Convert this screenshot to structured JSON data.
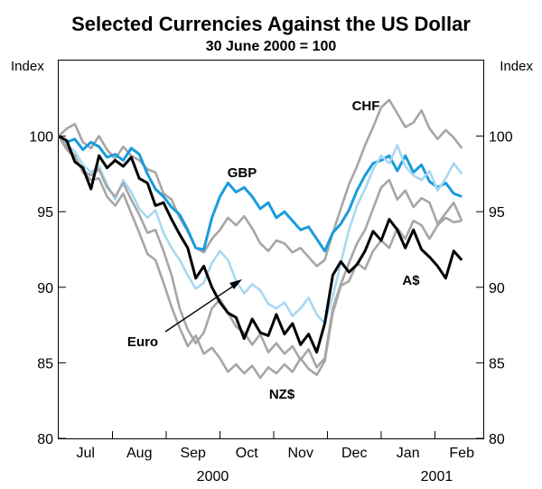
{
  "chart_data": {
    "type": "line",
    "title": "Selected Currencies Against the US Dollar",
    "subtitle": "30 June 2000 = 100",
    "ylabel_left": "Index",
    "ylabel_right": "Index",
    "ylim": [
      80,
      105
    ],
    "yticks": [
      80,
      85,
      90,
      95,
      100
    ],
    "xlim": [
      0,
      7.9
    ],
    "x_tick_labels": [
      {
        "label": "Jul",
        "x": 0.5
      },
      {
        "label": "Aug",
        "x": 1.5
      },
      {
        "label": "Sep",
        "x": 2.5
      },
      {
        "label": "Oct",
        "x": 3.5
      },
      {
        "label": "Nov",
        "x": 4.5
      },
      {
        "label": "Dec",
        "x": 5.5
      },
      {
        "label": "Jan",
        "x": 6.5
      },
      {
        "label": "Feb",
        "x": 7.5
      }
    ],
    "month_boundaries": [
      1,
      2,
      3,
      4,
      5,
      6,
      7
    ],
    "years": [
      {
        "label": "2000",
        "x": 3.0
      },
      {
        "label": "2001",
        "x": 7.0
      }
    ],
    "x_unit": "months since 30 June 2000 (daily data, approximated)",
    "series": [
      {
        "name": "CHF",
        "color": "#a6a6a6",
        "x": [
          0,
          0.15,
          0.3,
          0.45,
          0.6,
          0.75,
          0.9,
          1.05,
          1.2,
          1.35,
          1.5,
          1.65,
          1.8,
          1.95,
          2.1,
          2.25,
          2.4,
          2.55,
          2.7,
          2.85,
          3.0,
          3.15,
          3.3,
          3.45,
          3.6,
          3.75,
          3.9,
          4.05,
          4.2,
          4.35,
          4.5,
          4.65,
          4.8,
          4.95,
          5.1,
          5.25,
          5.4,
          5.55,
          5.7,
          5.85,
          6.0,
          6.15,
          6.3,
          6.45,
          6.6,
          6.75,
          6.9,
          7.05,
          7.2,
          7.35,
          7.5
        ],
        "values": [
          100,
          100.5,
          100.8,
          99.6,
          99.2,
          100,
          99.1,
          98.5,
          99.3,
          98.7,
          98.4,
          97.8,
          97.6,
          96.2,
          95.8,
          94.6,
          93.7,
          92.6,
          92.3,
          93.2,
          93.8,
          94.6,
          94.1,
          94.7,
          93.9,
          92.9,
          92.4,
          93.1,
          92.9,
          92.3,
          92.6,
          92.0,
          91.4,
          91.8,
          93.6,
          95.2,
          96.8,
          98.0,
          99.4,
          100.6,
          101.9,
          102.4,
          101.5,
          100.6,
          100.9,
          101.7,
          100.5,
          99.8,
          100.4,
          99.9,
          99.2
        ]
      },
      {
        "name": "GBP",
        "color": "#1a9bdc",
        "x": [
          0,
          0.15,
          0.3,
          0.45,
          0.6,
          0.75,
          0.9,
          1.05,
          1.2,
          1.35,
          1.5,
          1.65,
          1.8,
          1.95,
          2.1,
          2.25,
          2.4,
          2.55,
          2.7,
          2.85,
          3.0,
          3.15,
          3.3,
          3.45,
          3.6,
          3.75,
          3.9,
          4.05,
          4.2,
          4.35,
          4.5,
          4.65,
          4.8,
          4.95,
          5.1,
          5.25,
          5.4,
          5.55,
          5.7,
          5.85,
          6.0,
          6.15,
          6.3,
          6.45,
          6.6,
          6.75,
          6.9,
          7.05,
          7.2,
          7.35,
          7.5
        ],
        "values": [
          100,
          99.6,
          99.8,
          99.1,
          99.6,
          99.3,
          98.6,
          98.8,
          98.4,
          99.2,
          98.8,
          97.5,
          96.5,
          96.0,
          95.3,
          94.8,
          93.8,
          92.6,
          92.5,
          94.6,
          96.0,
          96.9,
          96.3,
          96.6,
          96.0,
          95.2,
          95.6,
          94.6,
          95.0,
          94.4,
          93.8,
          94.0,
          93.2,
          92.4,
          93.6,
          94.2,
          95.1,
          96.4,
          97.4,
          98.2,
          98.4,
          98.7,
          97.7,
          98.7,
          97.6,
          98.1,
          97.0,
          96.6,
          96.9,
          96.2,
          96.0
        ]
      },
      {
        "name": "Light blue",
        "color": "#a8d8f2",
        "x": [
          0,
          0.15,
          0.3,
          0.45,
          0.6,
          0.75,
          0.9,
          1.05,
          1.2,
          1.35,
          1.5,
          1.65,
          1.8,
          1.95,
          2.1,
          2.25,
          2.4,
          2.55,
          2.7,
          2.85,
          3.0,
          3.15,
          3.3,
          3.45,
          3.6,
          3.75,
          3.9,
          4.05,
          4.2,
          4.35,
          4.5,
          4.65,
          4.8,
          4.95,
          5.1,
          5.25,
          5.4,
          5.55,
          5.7,
          5.85,
          6.0,
          6.15,
          6.3,
          6.45,
          6.6,
          6.75,
          6.9,
          7.05,
          7.2,
          7.35,
          7.5
        ],
        "values": [
          100,
          99.4,
          99.0,
          98.1,
          97.6,
          98.0,
          96.8,
          95.8,
          97.1,
          96.3,
          95.2,
          94.6,
          95.1,
          93.6,
          92.6,
          91.8,
          90.8,
          89.9,
          90.3,
          91.6,
          92.4,
          91.8,
          90.4,
          89.6,
          90.2,
          89.8,
          88.9,
          88.6,
          89.0,
          88.1,
          88.6,
          89.3,
          88.2,
          87.6,
          89.4,
          91.6,
          93.8,
          95.4,
          96.5,
          97.8,
          98.7,
          98.2,
          99.4,
          98.0,
          97.4,
          97.1,
          97.7,
          96.4,
          97.2,
          98.2,
          97.5
        ]
      },
      {
        "name": "Euro",
        "color": "#a6a6a6",
        "x": [
          0,
          0.15,
          0.3,
          0.45,
          0.6,
          0.75,
          0.9,
          1.05,
          1.2,
          1.35,
          1.5,
          1.65,
          1.8,
          1.95,
          2.1,
          2.25,
          2.4,
          2.55,
          2.7,
          2.85,
          3.0,
          3.15,
          3.3,
          3.45,
          3.6,
          3.75,
          3.9,
          4.05,
          4.2,
          4.35,
          4.5,
          4.65,
          4.8,
          4.95,
          5.1,
          5.25,
          5.4,
          5.55,
          5.7,
          5.85,
          6.0,
          6.15,
          6.3,
          6.45,
          6.6,
          6.75,
          6.9,
          7.05,
          7.2,
          7.35,
          7.5
        ],
        "values": [
          100,
          99.1,
          98.6,
          97.7,
          97.4,
          97.8,
          96.6,
          96.0,
          96.9,
          95.8,
          94.8,
          93.6,
          93.8,
          92.4,
          90.8,
          88.6,
          87.2,
          86.3,
          87.0,
          88.6,
          89.2,
          88.3,
          87.4,
          87.0,
          86.2,
          86.9,
          85.7,
          86.3,
          85.6,
          86.1,
          85.2,
          85.9,
          84.7,
          85.3,
          88.6,
          90.2,
          91.6,
          92.9,
          93.8,
          95.2,
          96.6,
          97.1,
          95.8,
          96.4,
          95.3,
          95.9,
          95.6,
          94.2,
          94.9,
          95.6,
          94.4
        ]
      },
      {
        "name": "NZ$",
        "color": "#a6a6a6",
        "x": [
          0,
          0.15,
          0.3,
          0.45,
          0.6,
          0.75,
          0.9,
          1.05,
          1.2,
          1.35,
          1.5,
          1.65,
          1.8,
          1.95,
          2.1,
          2.25,
          2.4,
          2.55,
          2.7,
          2.85,
          3.0,
          3.15,
          3.3,
          3.45,
          3.6,
          3.75,
          3.9,
          4.05,
          4.2,
          4.35,
          4.5,
          4.65,
          4.8,
          4.95,
          5.1,
          5.25,
          5.4,
          5.55,
          5.7,
          5.85,
          6.0,
          6.15,
          6.3,
          6.45,
          6.6,
          6.75,
          6.9,
          7.05,
          7.2,
          7.35,
          7.5
        ],
        "values": [
          100,
          99.3,
          98.7,
          97.6,
          97.1,
          97.2,
          96.0,
          95.4,
          96.2,
          94.9,
          93.6,
          92.2,
          91.8,
          90.3,
          88.7,
          87.3,
          86.1,
          86.8,
          85.6,
          86.0,
          85.3,
          84.4,
          84.9,
          84.3,
          84.8,
          84.0,
          84.7,
          84.3,
          84.9,
          84.4,
          85.3,
          84.6,
          84.2,
          85.1,
          88.3,
          90.1,
          90.4,
          91.6,
          91.2,
          92.4,
          93.1,
          92.6,
          93.9,
          93.2,
          94.4,
          94.1,
          93.2,
          94.1,
          94.6,
          94.3,
          94.4
        ]
      },
      {
        "name": "A$",
        "color": "#000000",
        "x": [
          0,
          0.15,
          0.3,
          0.45,
          0.6,
          0.75,
          0.9,
          1.05,
          1.2,
          1.35,
          1.5,
          1.65,
          1.8,
          1.95,
          2.1,
          2.25,
          2.4,
          2.55,
          2.7,
          2.85,
          3.0,
          3.15,
          3.3,
          3.45,
          3.6,
          3.75,
          3.9,
          4.05,
          4.2,
          4.35,
          4.5,
          4.65,
          4.8,
          4.95,
          5.1,
          5.25,
          5.4,
          5.55,
          5.7,
          5.85,
          6.0,
          6.15,
          6.3,
          6.45,
          6.6,
          6.75,
          6.9,
          7.05,
          7.2,
          7.35,
          7.5
        ],
        "values": [
          100,
          99.7,
          98.3,
          97.9,
          96.5,
          98.7,
          97.9,
          98.4,
          98.0,
          98.6,
          97.2,
          96.9,
          95.4,
          95.6,
          94.5,
          93.5,
          92.6,
          90.6,
          91.4,
          90.0,
          89.0,
          88.3,
          88.0,
          86.6,
          87.9,
          87.0,
          86.8,
          88.2,
          86.9,
          87.6,
          86.2,
          86.9,
          85.7,
          87.6,
          90.8,
          91.7,
          91.0,
          91.5,
          92.4,
          93.7,
          93.1,
          94.5,
          93.8,
          92.6,
          93.8,
          92.5,
          92.0,
          91.4,
          90.6,
          92.4,
          91.8
        ]
      }
    ],
    "annotations": [
      {
        "label": "CHF"
      },
      {
        "label": "GBP"
      },
      {
        "label": "Euro"
      },
      {
        "label": "NZ$"
      },
      {
        "label": "A$"
      }
    ]
  }
}
